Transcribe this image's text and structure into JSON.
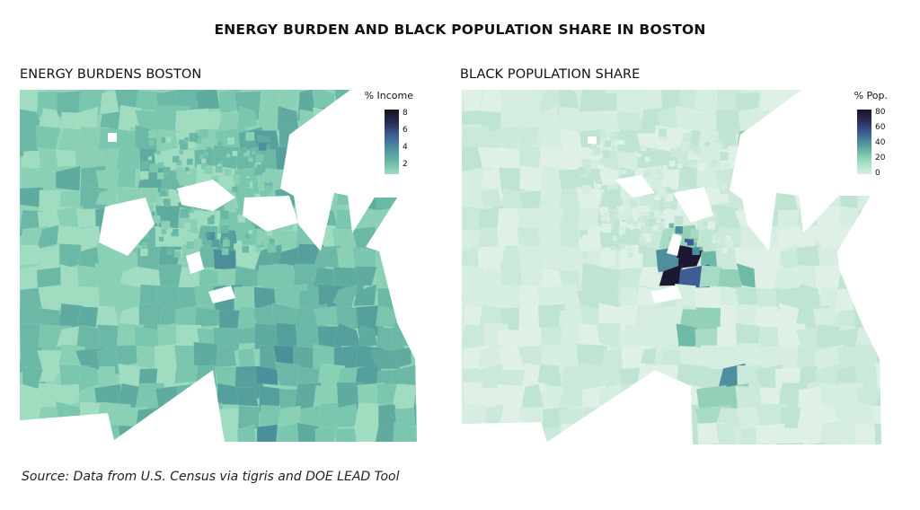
{
  "title": "ENERGY BURDEN AND BLACK POPULATION SHARE IN BOSTON",
  "source": "Source: Data from U.S. Census via tigris and DOE LEAD Tool",
  "panels": [
    {
      "title": "ENERGY BURDENS BOSTON",
      "legend": {
        "title": "% Income",
        "ticks": [
          "8",
          "6",
          "4",
          "2"
        ],
        "tick_values": [
          8,
          6,
          4,
          2
        ],
        "range": [
          1,
          8.5
        ],
        "gradient": [
          "#9fdcc0",
          "#69b7a6",
          "#4f8fa0",
          "#3f5f92",
          "#2a2a55",
          "#17131e"
        ]
      },
      "base_color": "#8fd4b8",
      "colors": [
        "#9fdcc0",
        "#8ad0b5",
        "#7ac6ae",
        "#6cb8a7",
        "#5fab9f",
        "#55a09d",
        "#4a8f9a",
        "#3f6f96",
        "#3b5590",
        "#2c2a55"
      ]
    },
    {
      "title": "BLACK POPULATION SHARE",
      "legend": {
        "title": "% Pop.",
        "ticks": [
          "80",
          "60",
          "40",
          "20",
          "0"
        ],
        "tick_values": [
          80,
          60,
          40,
          20,
          0
        ],
        "range": [
          0,
          85
        ],
        "gradient": [
          "#d7eee2",
          "#9fdcc0",
          "#5fab9f",
          "#3f6a97",
          "#2e2f66",
          "#17131e"
        ]
      },
      "base_color": "#d2ecdf",
      "colors": [
        "#dff1e7",
        "#d6eee2",
        "#cbe9da",
        "#bfe4d1",
        "#a8dbc5",
        "#92d0b8",
        "#6fb9a8",
        "#4f8f9d",
        "#3d5d93",
        "#2b2c5f",
        "#1c1730"
      ]
    }
  ]
}
